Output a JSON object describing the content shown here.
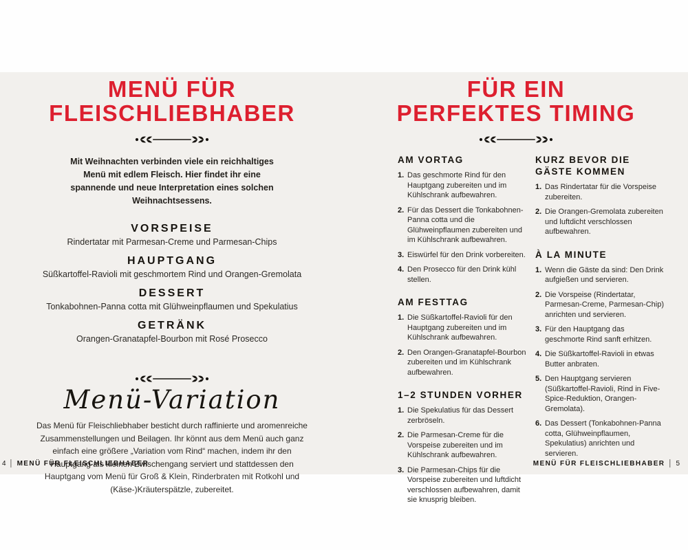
{
  "colors": {
    "accent_red": "#dd1f2f",
    "paper": "#f2f0ed",
    "ink": "#1c1917"
  },
  "left_page": {
    "title_line1": "MENÜ FÜR",
    "title_line2": "FLEISCHLIEBHABER",
    "intro": "Mit Weihnachten verbinden viele ein reichhaltiges Menü mit edlem Fleisch. Hier findet ihr eine spannende und neue Interpretation eines solchen Weihnachtsessens.",
    "courses": [
      {
        "name": "VORSPEISE",
        "dish": "Rindertatar mit Parmesan-Creme und Parmesan-Chips"
      },
      {
        "name": "HAUPTGANG",
        "dish": "Süßkartoffel-Ravioli mit geschmortem Rind und Orangen-Gremolata"
      },
      {
        "name": "DESSERT",
        "dish": "Tonkabohnen-Panna cotta mit Glühweinpflaumen und Spekulatius"
      },
      {
        "name": "GETRÄNK",
        "dish": "Orangen-Granatapfel-Bourbon mit Rosé Prosecco"
      }
    ],
    "variation_title": "Menü-Variation",
    "variation_text": "Das Menü für Fleischliebhaber besticht durch raffinierte und aromenreiche Zusammenstellungen und Beilagen. Ihr könnt aus dem Menü auch ganz einfach eine größere „Variation vom Rind“ machen, indem ihr den Hauptgang als kleinen Zwischengang serviert und stattdessen den Hauptgang vom Menü für Groß & Klein, Rinderbraten mit Rotkohl und (Käse-)Kräuterspätzle, zubereitet.",
    "footer": {
      "page_number": "4",
      "label": "MENÜ FÜR FLEISCHLIEBHABER"
    }
  },
  "right_page": {
    "title_line1": "FÜR EIN",
    "title_line2": "PERFEKTES TIMING",
    "columns": [
      {
        "sections": [
          {
            "heading": "AM VORTAG",
            "items": [
              "Das geschmorte Rind für den Hauptgang zubereiten und im Kühlschrank aufbewahren.",
              "Für das Dessert die Tonkabohnen-Panna cotta und die Glühweinpflaumen zubereiten und im Kühlschrank aufbewahren.",
              "Eiswürfel für den Drink vorbereiten.",
              "Den Prosecco für den Drink kühl stellen."
            ]
          },
          {
            "heading": "AM FESTTAG",
            "items": [
              "Die Süßkartoffel-Ravioli für den Hauptgang zubereiten und im Kühlschrank aufbewahren.",
              "Den Orangen-Granatapfel-Bourbon zubereiten und im Kühlschrank aufbewahren."
            ]
          },
          {
            "heading": "1–2 STUNDEN VORHER",
            "items": [
              "Die Spekulatius für das Dessert zerbröseln.",
              "Die Parmesan-Creme für die Vorspeise zubereiten und im Kühlschrank aufbewahren.",
              "Die Parmesan-Chips für die Vorspeise zubereiten und luftdicht verschlossen aufbewahren, damit sie knusprig bleiben."
            ]
          }
        ]
      },
      {
        "sections": [
          {
            "heading": "KURZ BEVOR DIE GÄSTE KOMMEN",
            "items": [
              "Das Rindertatar für die Vorspeise zubereiten.",
              "Die Orangen-Gremolata zubereiten und luftdicht verschlossen aufbewahren."
            ]
          },
          {
            "heading": "À LA MINUTE",
            "items": [
              "Wenn die Gäste da sind: Den Drink aufgießen und servieren.",
              "Die Vorspeise (Rindertatar, Parmesan-Creme, Parmesan-Chip) anrichten und servieren.",
              "Für den Hauptgang das geschmorte Rind sanft erhitzen.",
              "Die Süßkartoffel-Ravioli in etwas Butter anbraten.",
              "Den Hauptgang servieren (Süßkartoffel-Ravioli, Rind in Five-Spice-Reduktion, Orangen-Gremolata).",
              "Das Dessert (Tonkabohnen-Panna cotta, Glühweinpflaumen, Spekulatius) anrichten und servieren."
            ]
          }
        ]
      }
    ],
    "footer": {
      "label": "MENÜ FÜR FLEISCHLIEBHABER",
      "page_number": "5"
    }
  }
}
